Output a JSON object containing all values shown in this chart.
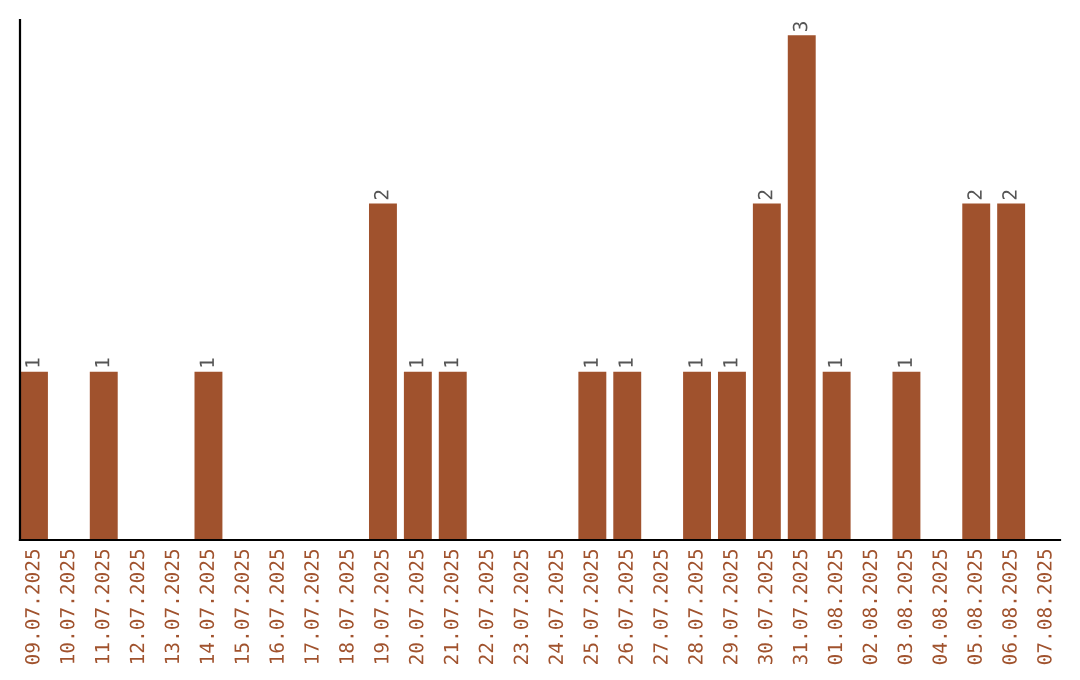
{
  "chart_data": {
    "type": "bar",
    "categories": [
      "09.07.2025",
      "10.07.2025",
      "11.07.2025",
      "12.07.2025",
      "13.07.2025",
      "14.07.2025",
      "15.07.2025",
      "16.07.2025",
      "17.07.2025",
      "18.07.2025",
      "19.07.2025",
      "20.07.2025",
      "21.07.2025",
      "22.07.2025",
      "23.07.2025",
      "24.07.2025",
      "25.07.2025",
      "26.07.2025",
      "27.07.2025",
      "28.07.2025",
      "29.07.2025",
      "30.07.2025",
      "31.07.2025",
      "01.08.2025",
      "02.08.2025",
      "03.08.2025",
      "04.08.2025",
      "05.08.2025",
      "06.08.2025",
      "07.08.2025"
    ],
    "values": [
      1,
      0,
      1,
      0,
      0,
      1,
      0,
      0,
      0,
      0,
      2,
      1,
      1,
      0,
      0,
      0,
      1,
      1,
      0,
      1,
      1,
      2,
      3,
      1,
      0,
      1,
      0,
      2,
      2,
      0
    ],
    "value_labels": [
      "1",
      null,
      "1",
      null,
      null,
      "1",
      null,
      null,
      null,
      null,
      "2",
      "1",
      "1",
      null,
      null,
      null,
      "1",
      "1",
      null,
      "1",
      "1",
      "2",
      "3",
      "1",
      null,
      "1",
      null,
      "2",
      "2",
      null
    ],
    "color": "#a0522d",
    "tick_labels": "x",
    "grid": false,
    "legend": false
  }
}
